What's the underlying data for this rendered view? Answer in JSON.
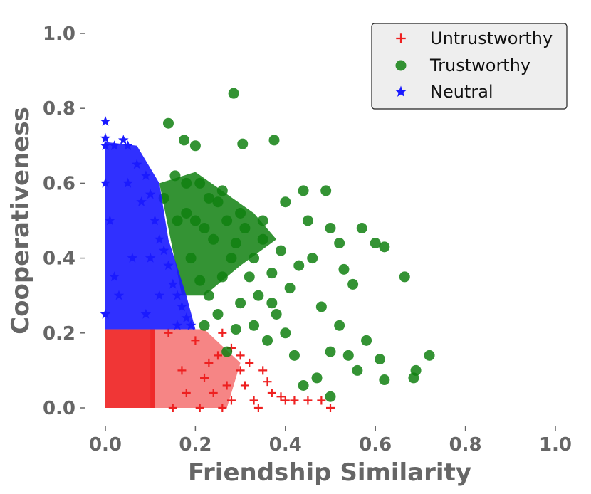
{
  "chart_data": {
    "type": "scatter",
    "title": "",
    "xlabel": "Friendship Similarity",
    "ylabel": "Cooperativeness",
    "xlim": [
      0.0,
      1.0
    ],
    "ylim": [
      0.0,
      1.0
    ],
    "x_ticks": [
      "0.0",
      "0.2",
      "0.4",
      "0.6",
      "0.8",
      "1.0"
    ],
    "y_ticks": [
      "0.0",
      "0.2",
      "0.4",
      "0.6",
      "0.8",
      "1.0"
    ],
    "grid": false,
    "legend_position": "top-right",
    "series": [
      {
        "name": "Untrustworthy",
        "marker": "plus",
        "color": "#ee2020",
        "points": [
          [
            0.5,
            0.0
          ],
          [
            0.48,
            0.02
          ],
          [
            0.45,
            0.02
          ],
          [
            0.42,
            0.02
          ],
          [
            0.4,
            0.02
          ],
          [
            0.39,
            0.03
          ],
          [
            0.37,
            0.04
          ],
          [
            0.36,
            0.07
          ],
          [
            0.34,
            0.0
          ],
          [
            0.33,
            0.02
          ],
          [
            0.35,
            0.1
          ],
          [
            0.31,
            0.06
          ],
          [
            0.3,
            0.1
          ],
          [
            0.28,
            0.02
          ],
          [
            0.26,
            0.0
          ],
          [
            0.27,
            0.06
          ],
          [
            0.25,
            0.14
          ],
          [
            0.24,
            0.04
          ],
          [
            0.22,
            0.08
          ],
          [
            0.21,
            0.0
          ],
          [
            0.2,
            0.18
          ],
          [
            0.28,
            0.16
          ],
          [
            0.32,
            0.12
          ],
          [
            0.23,
            0.12
          ],
          [
            0.18,
            0.04
          ],
          [
            0.17,
            0.1
          ],
          [
            0.15,
            0.0
          ],
          [
            0.14,
            0.2
          ],
          [
            0.3,
            0.14
          ],
          [
            0.26,
            0.2
          ]
        ]
      },
      {
        "name": "Trustworthy",
        "marker": "circle",
        "color": "#108010",
        "points": [
          [
            0.285,
            0.84
          ],
          [
            0.375,
            0.715
          ],
          [
            0.305,
            0.705
          ],
          [
            0.14,
            0.76
          ],
          [
            0.175,
            0.715
          ],
          [
            0.2,
            0.7
          ],
          [
            0.155,
            0.62
          ],
          [
            0.18,
            0.6
          ],
          [
            0.13,
            0.56
          ],
          [
            0.25,
            0.55
          ],
          [
            0.3,
            0.52
          ],
          [
            0.35,
            0.5
          ],
          [
            0.4,
            0.55
          ],
          [
            0.44,
            0.58
          ],
          [
            0.49,
            0.58
          ],
          [
            0.45,
            0.5
          ],
          [
            0.5,
            0.48
          ],
          [
            0.52,
            0.44
          ],
          [
            0.57,
            0.48
          ],
          [
            0.6,
            0.44
          ],
          [
            0.62,
            0.43
          ],
          [
            0.665,
            0.35
          ],
          [
            0.72,
            0.14
          ],
          [
            0.69,
            0.1
          ],
          [
            0.685,
            0.08
          ],
          [
            0.62,
            0.075
          ],
          [
            0.61,
            0.13
          ],
          [
            0.56,
            0.1
          ],
          [
            0.54,
            0.14
          ],
          [
            0.5,
            0.03
          ],
          [
            0.5,
            0.15
          ],
          [
            0.47,
            0.08
          ],
          [
            0.44,
            0.06
          ],
          [
            0.42,
            0.14
          ],
          [
            0.4,
            0.2
          ],
          [
            0.38,
            0.25
          ],
          [
            0.36,
            0.18
          ],
          [
            0.34,
            0.3
          ],
          [
            0.32,
            0.35
          ],
          [
            0.3,
            0.28
          ],
          [
            0.28,
            0.4
          ],
          [
            0.26,
            0.35
          ],
          [
            0.24,
            0.45
          ],
          [
            0.22,
            0.48
          ],
          [
            0.2,
            0.5
          ],
          [
            0.18,
            0.52
          ],
          [
            0.16,
            0.5
          ],
          [
            0.19,
            0.4
          ],
          [
            0.21,
            0.34
          ],
          [
            0.23,
            0.3
          ],
          [
            0.25,
            0.25
          ],
          [
            0.22,
            0.22
          ],
          [
            0.27,
            0.15
          ],
          [
            0.29,
            0.21
          ],
          [
            0.33,
            0.22
          ],
          [
            0.37,
            0.28
          ],
          [
            0.41,
            0.32
          ],
          [
            0.43,
            0.38
          ],
          [
            0.46,
            0.4
          ],
          [
            0.48,
            0.27
          ],
          [
            0.52,
            0.22
          ],
          [
            0.55,
            0.33
          ],
          [
            0.53,
            0.37
          ],
          [
            0.58,
            0.18
          ],
          [
            0.39,
            0.42
          ],
          [
            0.35,
            0.45
          ],
          [
            0.31,
            0.48
          ],
          [
            0.27,
            0.5
          ],
          [
            0.23,
            0.56
          ],
          [
            0.21,
            0.6
          ],
          [
            0.26,
            0.58
          ],
          [
            0.29,
            0.44
          ],
          [
            0.33,
            0.4
          ],
          [
            0.37,
            0.36
          ]
        ]
      },
      {
        "name": "Neutral",
        "marker": "star",
        "color": "#1a1aff",
        "points": [
          [
            0.0,
            0.765
          ],
          [
            0.0,
            0.72
          ],
          [
            0.0,
            0.7
          ],
          [
            0.02,
            0.7
          ],
          [
            0.04,
            0.715
          ],
          [
            0.05,
            0.7
          ],
          [
            0.07,
            0.65
          ],
          [
            0.09,
            0.62
          ],
          [
            0.1,
            0.57
          ],
          [
            0.11,
            0.5
          ],
          [
            0.12,
            0.45
          ],
          [
            0.13,
            0.42
          ],
          [
            0.14,
            0.38
          ],
          [
            0.15,
            0.33
          ],
          [
            0.16,
            0.3
          ],
          [
            0.17,
            0.27
          ],
          [
            0.18,
            0.24
          ],
          [
            0.19,
            0.22
          ],
          [
            0.16,
            0.22
          ],
          [
            0.12,
            0.3
          ],
          [
            0.08,
            0.55
          ],
          [
            0.06,
            0.4
          ],
          [
            0.03,
            0.3
          ],
          [
            0.0,
            0.25
          ],
          [
            0.01,
            0.5
          ],
          [
            0.05,
            0.6
          ],
          [
            0.02,
            0.35
          ],
          [
            0.09,
            0.25
          ],
          [
            0.1,
            0.4
          ],
          [
            0.0,
            0.6
          ]
        ]
      }
    ]
  }
}
